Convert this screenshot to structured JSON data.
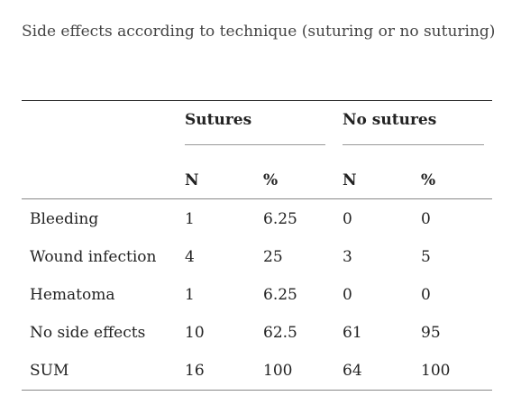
{
  "title": "Side effects according to technique (suturing or no suturing)",
  "table": {
    "groups": [
      "Sutures",
      "No sutures"
    ],
    "columns": [
      "N",
      "%",
      "N",
      "%"
    ],
    "rows": [
      [
        "Bleeding",
        1,
        6.25,
        0,
        0
      ],
      [
        "Wound infection",
        4,
        25,
        3,
        5
      ],
      [
        "Hematoma",
        1,
        6.25,
        0,
        0
      ],
      [
        "No side effects",
        10,
        62.5,
        61,
        95
      ],
      [
        "SUM",
        16,
        100,
        64,
        100
      ]
    ]
  }
}
